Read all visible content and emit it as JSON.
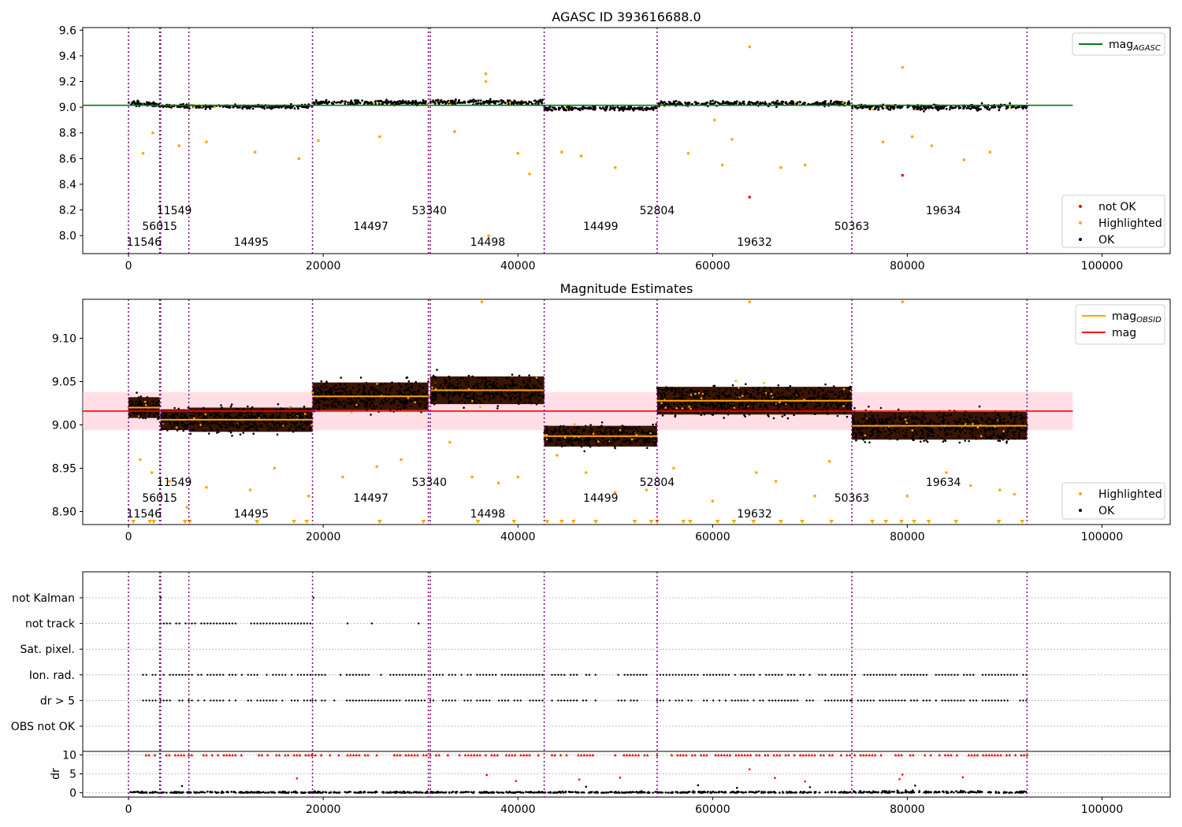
{
  "colors": {
    "ok": "#000000",
    "highlighted": "#ffa500",
    "not_ok": "#ff0000",
    "mag_agasc_line": "#008000",
    "mag_line": "#ff0000",
    "mag_obsid_line": "#ffa500",
    "obsid_boundary": "#800080",
    "mag_band": "#ffc0cb"
  },
  "obsid_boundaries": [
    0,
    3200,
    3300,
    6200,
    18900,
    30800,
    31000,
    42700,
    54300,
    74300,
    92300
  ],
  "obsid_labels": [
    {
      "text": "11546",
      "x": 1600,
      "row": 2
    },
    {
      "text": "56015",
      "x": 3200,
      "row": 1
    },
    {
      "text": "11549",
      "x": 4700,
      "row": 0
    },
    {
      "text": "14495",
      "x": 12600,
      "row": 2
    },
    {
      "text": "14497",
      "x": 24900,
      "row": 1
    },
    {
      "text": "53340",
      "x": 30900,
      "row": 0
    },
    {
      "text": "14498",
      "x": 36900,
      "row": 2
    },
    {
      "text": "14499",
      "x": 48500,
      "row": 1
    },
    {
      "text": "52804",
      "x": 54300,
      "row": 0
    },
    {
      "text": "19632",
      "x": 64300,
      "row": 2
    },
    {
      "text": "50363",
      "x": 74300,
      "row": 1
    },
    {
      "text": "19634",
      "x": 83700,
      "row": 0
    }
  ],
  "chart_data": [
    {
      "type": "scatter",
      "title": "AGASC ID 393616688.0",
      "xlim": [
        -4700,
        107000
      ],
      "ylim": [
        7.86,
        9.62
      ],
      "xticks": [
        0,
        20000,
        40000,
        60000,
        80000,
        100000
      ],
      "yticks": [
        8.0,
        8.2,
        8.4,
        8.6,
        8.8,
        9.0,
        9.2,
        9.4,
        9.6
      ],
      "ytick_labels": [
        "8.0",
        "8.2",
        "8.4",
        "8.6",
        "8.8",
        "9.0",
        "9.2",
        "9.4",
        "9.6"
      ],
      "legend_top": {
        "position": "upper right",
        "entries": [
          {
            "label": "mag",
            "subscript": "AGASC",
            "kind": "line",
            "color": "#008000"
          }
        ]
      },
      "legend_bottom": {
        "position": "lower right",
        "entries": [
          {
            "label": "not OK",
            "kind": "point",
            "color": "#ff0000"
          },
          {
            "label": "Highlighted",
            "kind": "point",
            "color": "#ffa500"
          },
          {
            "label": "OK",
            "kind": "point",
            "color": "#000000"
          }
        ]
      },
      "mag_agasc": {
        "value": 9.015,
        "x_range": [
          -4700,
          97000
        ]
      },
      "segments": [
        {
          "x": [
            0,
            3200
          ],
          "mean": 9.025,
          "spread": 0.02
        },
        {
          "x": [
            3300,
            6200
          ],
          "mean": 9.01,
          "spread": 0.015
        },
        {
          "x": [
            6200,
            18900
          ],
          "mean": 9.005,
          "spread": 0.015
        },
        {
          "x": [
            18900,
            30800
          ],
          "mean": 9.035,
          "spread": 0.018
        },
        {
          "x": [
            31000,
            42700
          ],
          "mean": 9.04,
          "spread": 0.018
        },
        {
          "x": [
            42700,
            54300
          ],
          "mean": 8.99,
          "spread": 0.015
        },
        {
          "x": [
            54300,
            74300
          ],
          "mean": 9.03,
          "spread": 0.018
        },
        {
          "x": [
            74300,
            92300
          ],
          "mean": 9.0,
          "spread": 0.02
        }
      ],
      "highlighted_points": [
        [
          1500,
          8.64
        ],
        [
          2500,
          8.8
        ],
        [
          5200,
          8.7
        ],
        [
          8000,
          8.73
        ],
        [
          13000,
          8.65
        ],
        [
          17500,
          8.6
        ],
        [
          19500,
          8.74
        ],
        [
          25800,
          8.77
        ],
        [
          33500,
          8.81
        ],
        [
          36700,
          9.26
        ],
        [
          36700,
          9.2
        ],
        [
          37000,
          8.0
        ],
        [
          40000,
          8.64
        ],
        [
          41200,
          8.48
        ],
        [
          44500,
          8.65
        ],
        [
          46500,
          8.62
        ],
        [
          50000,
          8.53
        ],
        [
          57500,
          8.64
        ],
        [
          61000,
          8.55
        ],
        [
          62000,
          8.75
        ],
        [
          63800,
          9.47
        ],
        [
          67000,
          8.53
        ],
        [
          69500,
          8.55
        ],
        [
          79500,
          9.31
        ],
        [
          82500,
          8.7
        ],
        [
          85800,
          8.59
        ],
        [
          88500,
          8.65
        ],
        [
          77500,
          8.73
        ],
        [
          80500,
          8.77
        ],
        [
          60200,
          8.9
        ]
      ],
      "not_ok_points": [
        [
          63800,
          8.3
        ],
        [
          79500,
          8.47
        ]
      ]
    },
    {
      "type": "scatter",
      "title": "Magnitude Estimates",
      "xlim": [
        -4700,
        107000
      ],
      "ylim": [
        8.885,
        9.145
      ],
      "xticks": [
        0,
        20000,
        40000,
        60000,
        80000,
        100000
      ],
      "yticks": [
        8.9,
        8.95,
        9.0,
        9.05,
        9.1
      ],
      "ytick_labels": [
        "8.90",
        "8.95",
        "9.00",
        "9.05",
        "9.10"
      ],
      "legend_top": {
        "position": "upper right",
        "entries": [
          {
            "label": "mag",
            "subscript": "OBSID",
            "kind": "line",
            "color": "#ffa500"
          },
          {
            "label": "mag",
            "kind": "line",
            "color": "#ff0000"
          }
        ]
      },
      "legend_bottom": {
        "position": "lower right",
        "entries": [
          {
            "label": "Highlighted",
            "kind": "point",
            "color": "#ffa500"
          },
          {
            "label": "OK",
            "kind": "point",
            "color": "#000000"
          }
        ]
      },
      "mag": {
        "value": 9.016,
        "band": [
          8.994,
          9.038
        ],
        "x_range": [
          -4700,
          97000
        ]
      },
      "segments": [
        {
          "x": [
            0,
            3200
          ],
          "mean": 9.02,
          "spread": 0.012
        },
        {
          "x": [
            3300,
            6200
          ],
          "mean": 9.006,
          "spread": 0.012
        },
        {
          "x": [
            6200,
            18900
          ],
          "mean": 9.006,
          "spread": 0.014
        },
        {
          "x": [
            18900,
            30800
          ],
          "mean": 9.033,
          "spread": 0.016
        },
        {
          "x": [
            31000,
            42700
          ],
          "mean": 9.04,
          "spread": 0.016
        },
        {
          "x": [
            42700,
            54300
          ],
          "mean": 8.987,
          "spread": 0.012
        },
        {
          "x": [
            54300,
            74300
          ],
          "mean": 9.028,
          "spread": 0.016
        },
        {
          "x": [
            74300,
            92300
          ],
          "mean": 8.999,
          "spread": 0.016
        }
      ],
      "highlighted_points": [
        [
          1200,
          8.96
        ],
        [
          2400,
          8.945
        ],
        [
          4200,
          8.935
        ],
        [
          6000,
          8.905
        ],
        [
          8000,
          8.928
        ],
        [
          12500,
          8.925
        ],
        [
          15000,
          8.95
        ],
        [
          18500,
          8.918
        ],
        [
          22000,
          8.94
        ],
        [
          25500,
          8.952
        ],
        [
          28000,
          8.96
        ],
        [
          33000,
          8.98
        ],
        [
          35300,
          8.94
        ],
        [
          36300,
          9.142
        ],
        [
          38000,
          8.933
        ],
        [
          40000,
          8.94
        ],
        [
          44000,
          8.965
        ],
        [
          47000,
          8.945
        ],
        [
          50000,
          8.922
        ],
        [
          53200,
          8.925
        ],
        [
          56000,
          8.95
        ],
        [
          60000,
          8.912
        ],
        [
          63800,
          9.142
        ],
        [
          64500,
          8.945
        ],
        [
          66500,
          8.935
        ],
        [
          70500,
          8.918
        ],
        [
          72000,
          8.958
        ],
        [
          79500,
          9.142
        ],
        [
          80000,
          8.918
        ],
        [
          84000,
          8.945
        ],
        [
          86500,
          8.93
        ],
        [
          89500,
          8.925
        ],
        [
          91000,
          8.92
        ]
      ],
      "clipped_low_points": [
        500,
        2200,
        2600,
        5800,
        6300,
        13200,
        17000,
        18300,
        25800,
        30300,
        35900,
        39600,
        43000,
        44500,
        45700,
        48000,
        52000,
        53700,
        54300,
        57000,
        57700,
        60500,
        62200,
        64200,
        67000,
        69200,
        72200,
        76400,
        77800,
        79400,
        80700,
        82200,
        85000,
        89400,
        91800
      ]
    },
    {
      "type": "scatter",
      "title": "",
      "xlim": [
        -4700,
        107000
      ],
      "xticks": [
        0,
        20000,
        40000,
        60000,
        80000,
        100000
      ],
      "flag_rows": [
        "not Kalman",
        "not track",
        "Sat. pixel.",
        "Ion. rad.",
        "dr > 5",
        "OBS not OK"
      ],
      "flag_points": {
        "not Kalman": [
          [
            3300,
            3400
          ],
          [
            19000,
            19100
          ]
        ],
        "not track": [
          [
            3300,
            6200
          ],
          [
            6200,
            18900
          ],
          [
            19800,
            20100
          ],
          [
            22500,
            22700
          ],
          [
            23800,
            24000
          ],
          [
            25000,
            25200
          ],
          [
            29800,
            30000
          ]
        ],
        "Sat. pixel.": [],
        "Ion. rad.": [
          [
            1500,
            2800
          ],
          [
            3300,
            6200
          ],
          [
            6200,
            18900
          ],
          [
            18900,
            30800
          ],
          [
            31000,
            42700
          ],
          [
            43500,
            48000
          ],
          [
            50000,
            53500
          ],
          [
            54300,
            74300
          ],
          [
            74300,
            92300
          ]
        ],
        "dr > 5": [
          [
            1500,
            2800
          ],
          [
            3300,
            6200
          ],
          [
            6200,
            18900
          ],
          [
            18900,
            30800
          ],
          [
            31000,
            42700
          ],
          [
            43500,
            48000
          ],
          [
            50000,
            53500
          ],
          [
            54300,
            74300
          ],
          [
            74300,
            92300
          ]
        ],
        "OBS not OK": []
      },
      "dr_axis": {
        "ylabel": "dr",
        "ylim": [
          -0.5,
          10.5
        ],
        "yticks": [
          0,
          5,
          10
        ],
        "ytick_labels": [
          "0",
          "5",
          "10"
        ]
      },
      "dr_clipped_value": 10,
      "dr_outliers": [
        [
          17300,
          3.8
        ],
        [
          36800,
          4.7
        ],
        [
          39800,
          3.1
        ],
        [
          46300,
          3.5
        ],
        [
          50500,
          4.0
        ],
        [
          63800,
          6.2
        ],
        [
          66400,
          3.9
        ],
        [
          69500,
          3.0
        ],
        [
          79500,
          4.8
        ],
        [
          79200,
          3.6
        ],
        [
          85700,
          4.1
        ],
        [
          5500,
          1.8
        ],
        [
          47000,
          1.6
        ],
        [
          58500,
          2.0
        ],
        [
          70000,
          1.5
        ],
        [
          80800,
          1.9
        ],
        [
          62500,
          1.3
        ]
      ]
    }
  ]
}
